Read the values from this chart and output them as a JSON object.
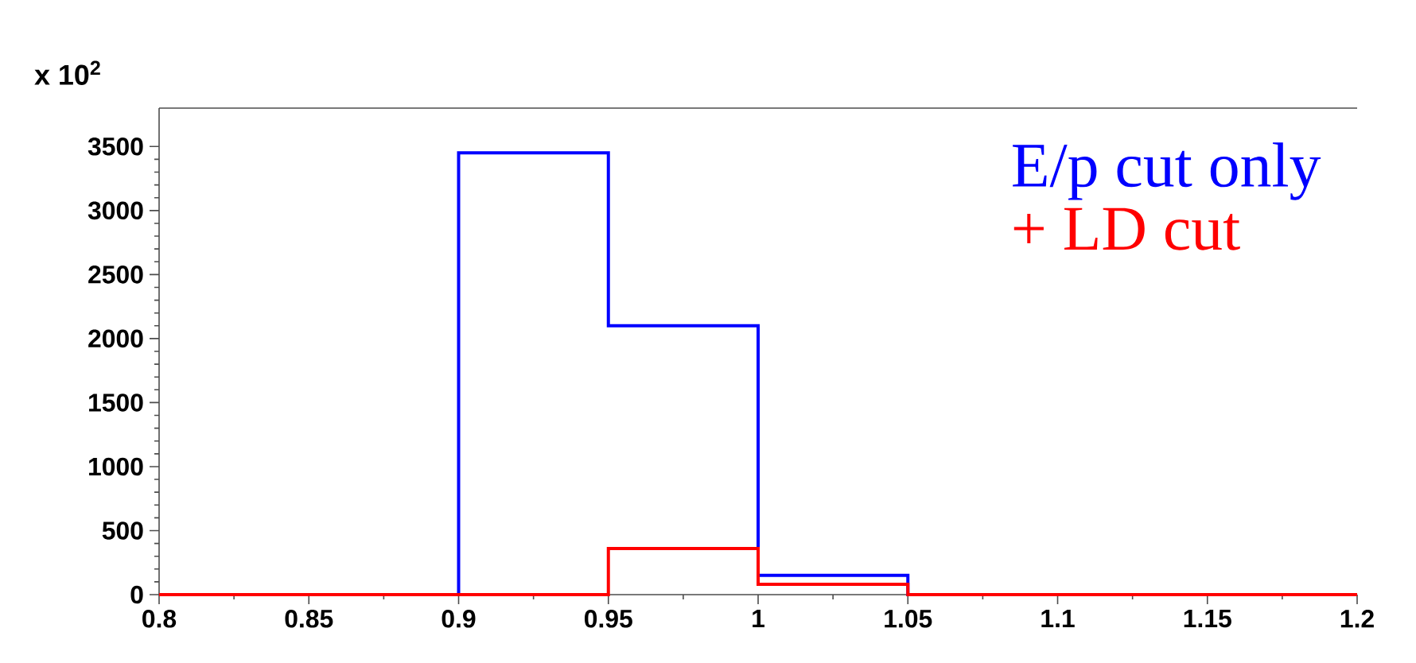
{
  "chart_data": {
    "type": "histogram",
    "bins": [
      0.8,
      0.85,
      0.9,
      0.95,
      1.0,
      1.05,
      1.1,
      1.15,
      1.2
    ],
    "series": [
      {
        "name": "E/p cut only",
        "color": "#0000ff",
        "values": [
          0,
          0,
          3450,
          2100,
          150,
          0,
          0,
          0
        ]
      },
      {
        "name": "+ LD cut",
        "color": "#ff0000",
        "values": [
          0,
          0,
          0,
          360,
          80,
          0,
          0,
          0
        ]
      }
    ],
    "xlim": [
      0.8,
      1.2
    ],
    "xticks": [
      0.8,
      0.85,
      0.9,
      0.95,
      1,
      1.05,
      1.1,
      1.15,
      1.2
    ],
    "ylim": [
      0,
      3800
    ],
    "yticks": [
      0,
      500,
      1000,
      1500,
      2000,
      2500,
      3000,
      3500
    ],
    "annotations": [
      "x 10$^{2}$"
    ],
    "legend": "top right",
    "grid": false
  }
}
